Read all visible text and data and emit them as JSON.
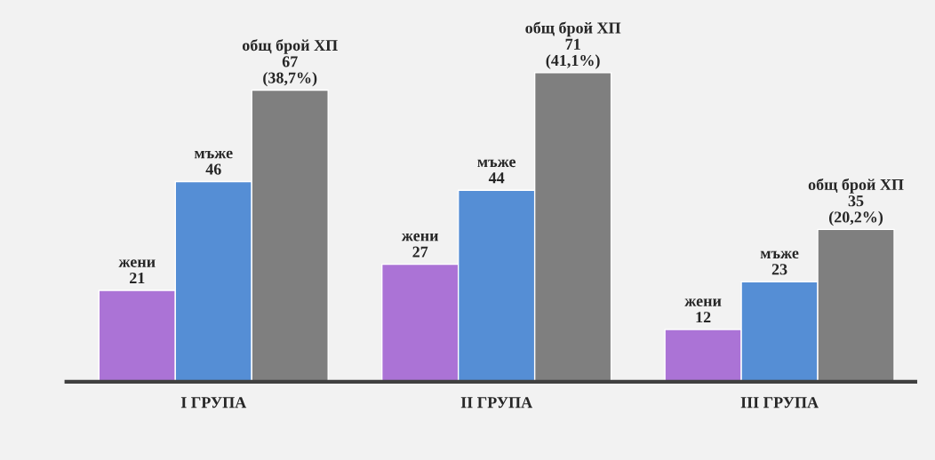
{
  "chart_data": {
    "type": "bar",
    "categories": [
      "I ГРУПА",
      "II ГРУПА",
      "III ГРУПА"
    ],
    "tick_labels": "x",
    "grid": false,
    "legend": false,
    "series": [
      {
        "name": "жени",
        "color": "#ab73d6",
        "values": [
          21,
          27,
          12
        ],
        "value_labels": [
          "21",
          "27",
          "12"
        ]
      },
      {
        "name": "мъже",
        "color": "#558ed5",
        "values": [
          46,
          44,
          23
        ],
        "value_labels": [
          "46",
          "44",
          "23"
        ]
      },
      {
        "name": "общ брой ХП",
        "color": "#7f7f7f",
        "values": [
          67,
          71,
          35
        ],
        "value_labels": [
          "67\n(38,7%)",
          "71\n(41,1%)",
          "35\n(20,2%)"
        ]
      }
    ]
  }
}
